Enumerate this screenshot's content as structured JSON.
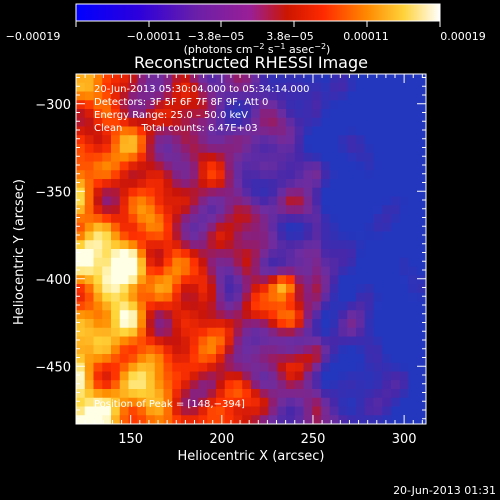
{
  "chart_data": {
    "type": "heatmap",
    "title": "Reconstructed RHESSI Image",
    "xlabel": "Heliocentric X (arcsec)",
    "ylabel": "Heliocentric Y (arcsec)",
    "xlim": [
      120,
      312
    ],
    "ylim": [
      -483,
      -283
    ],
    "x_ticks": [
      150,
      200,
      250,
      300
    ],
    "y_ticks": [
      -300,
      -350,
      -400,
      -450
    ],
    "x_tick_labels": [
      "150",
      "200",
      "250",
      "300"
    ],
    "y_tick_labels": [
      "−300",
      "−350",
      "−400",
      "−450"
    ],
    "colorbar": {
      "range": [
        -0.00019,
        0.00019
      ],
      "tick_labels": [
        "−0.00019",
        "−0.00011",
        "−3.8e−05",
        "3.8e−05",
        "0.00011",
        "0.00019"
      ],
      "unit_parts": [
        "(photons cm",
        "−2",
        " s",
        "−1",
        " asec",
        "−2",
        ")"
      ]
    },
    "annotations": [
      "20-Jun-2013 05:30:04.000 to 05:34:14.000",
      "Detectors: 3F 5F 6F 7F 8F 9F, Att 0",
      "Energy Range: 25.0 – 50.0 keV",
      "Clean      Total counts: 6.47E+03"
    ],
    "peak_label": "Position of Peak = [148,−394]",
    "peak": [
      148,
      -394
    ],
    "colors": [
      "#0000ff",
      "#3800c8",
      "#6a1fa8",
      "#9a1f96",
      "#cc1600",
      "#ff2a00",
      "#ff8a00",
      "#ffd23a",
      "#ffffff"
    ]
  },
  "footer_date": "20-Jun-2013 01:31"
}
